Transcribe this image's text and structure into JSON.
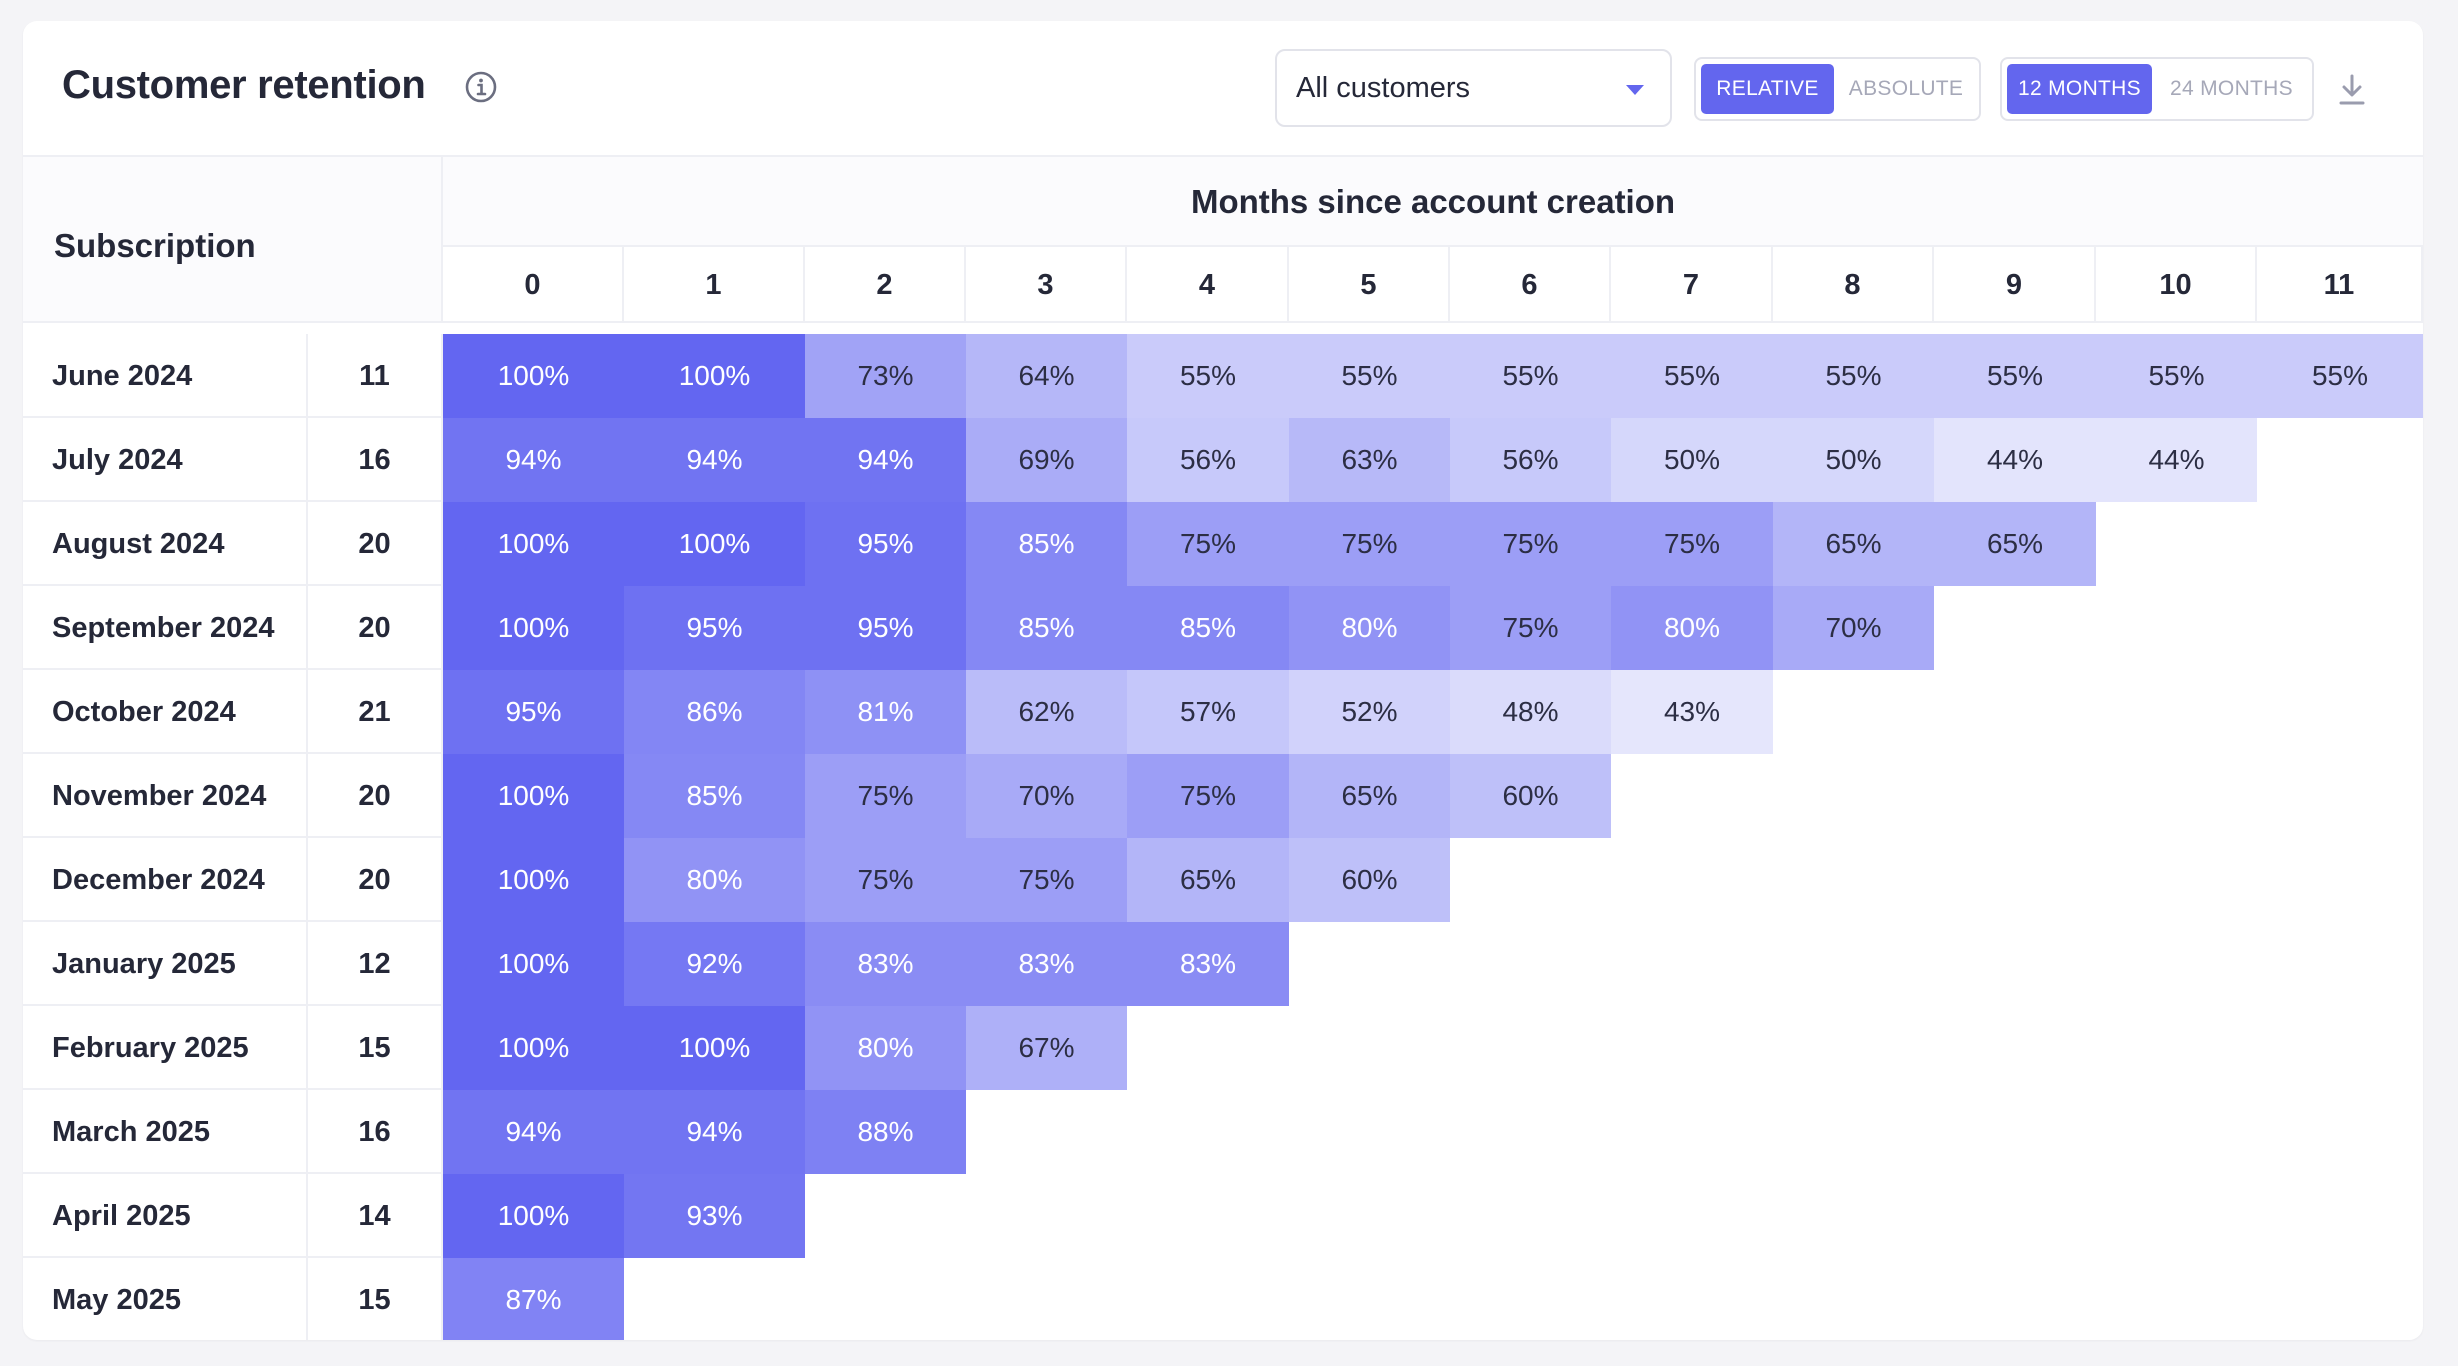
{
  "header": {
    "title": "Customer retention",
    "filter_value": "All customers",
    "mode_toggle": [
      {
        "label": "RELATIVE",
        "active": true
      },
      {
        "label": "ABSOLUTE",
        "active": false
      }
    ],
    "range_toggle": [
      {
        "label": "12 MONTHS",
        "active": true
      },
      {
        "label": "24 MONTHS",
        "active": false
      }
    ],
    "icons": {
      "info": "info-icon",
      "dropdown": "chevron-down-icon",
      "download": "download-icon"
    }
  },
  "colors": {
    "accent": "#6366ee",
    "cell_low": "#ecedfd",
    "cell_high": "#6366f1"
  },
  "chart_data": {
    "type": "heatmap",
    "title": "",
    "row_header": "Subscription",
    "xlabel": "Months since account creation",
    "columns": [
      "0",
      "1",
      "2",
      "3",
      "4",
      "5",
      "6",
      "7",
      "8",
      "9",
      "10",
      "11"
    ],
    "rows": [
      {
        "label": "June 2024",
        "count": "11",
        "values": [
          100,
          100,
          73,
          64,
          55,
          55,
          55,
          55,
          55,
          55,
          55,
          55
        ]
      },
      {
        "label": "July 2024",
        "count": "16",
        "values": [
          94,
          94,
          94,
          69,
          56,
          63,
          56,
          50,
          50,
          44,
          44
        ]
      },
      {
        "label": "August 2024",
        "count": "20",
        "values": [
          100,
          100,
          95,
          85,
          75,
          75,
          75,
          75,
          65,
          65
        ]
      },
      {
        "label": "September 2024",
        "count": "20",
        "values": [
          100,
          95,
          95,
          85,
          85,
          80,
          75,
          80,
          70
        ]
      },
      {
        "label": "October 2024",
        "count": "21",
        "values": [
          95,
          86,
          81,
          62,
          57,
          52,
          48,
          43
        ]
      },
      {
        "label": "November 2024",
        "count": "20",
        "values": [
          100,
          85,
          75,
          70,
          75,
          65,
          60
        ]
      },
      {
        "label": "December 2024",
        "count": "20",
        "values": [
          100,
          80,
          75,
          75,
          65,
          60
        ]
      },
      {
        "label": "January 2025",
        "count": "12",
        "values": [
          100,
          92,
          83,
          83,
          83
        ]
      },
      {
        "label": "February 2025",
        "count": "15",
        "values": [
          100,
          100,
          80,
          67
        ]
      },
      {
        "label": "March 2025",
        "count": "16",
        "values": [
          94,
          94,
          88
        ]
      },
      {
        "label": "April 2025",
        "count": "14",
        "values": [
          100,
          93
        ]
      },
      {
        "label": "May 2025",
        "count": "15",
        "values": [
          87
        ]
      }
    ],
    "value_suffix": "%"
  }
}
